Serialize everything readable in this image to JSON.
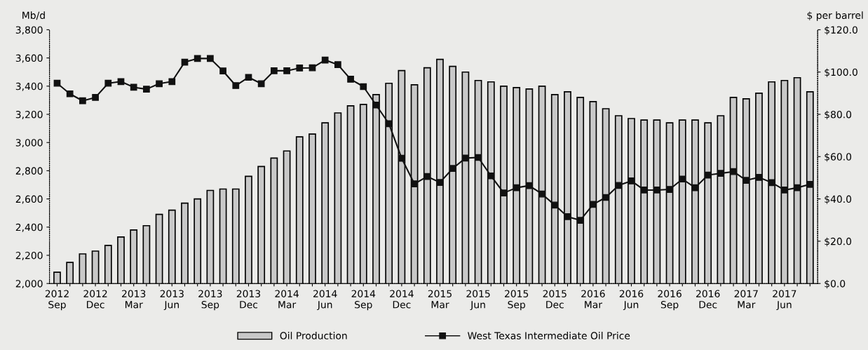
{
  "chart_data": {
    "type": "bar",
    "ylabel": "Mb/d",
    "y2label": "$ per barrel",
    "categories": [
      "2012\nSep",
      null,
      null,
      "2012\nDec",
      null,
      null,
      "2013\nMar",
      null,
      null,
      "2013\nJun",
      null,
      null,
      "2013\nSep",
      null,
      null,
      "2013\nDec",
      null,
      null,
      "2014\nMar",
      null,
      null,
      "2014\nJun",
      null,
      null,
      "2014\nSep",
      null,
      null,
      "2014\nDec",
      null,
      null,
      "2015\nMar",
      null,
      null,
      "2015\nJun",
      null,
      null,
      "2015\nSep",
      null,
      null,
      "2015\nDec",
      null,
      null,
      "2016\nMar",
      null,
      null,
      "2016\nJun",
      null,
      null,
      "2016\nSep",
      null,
      null,
      "2016\nDec",
      null,
      null,
      "2017\nMar",
      null,
      null,
      "2017\nJun",
      null,
      null
    ],
    "series": [
      {
        "name": "Oil Production",
        "color": "#c8c8c8",
        "values": [
          2080,
          2150,
          2210,
          2230,
          2270,
          2330,
          2380,
          2410,
          2490,
          2520,
          2570,
          2600,
          2660,
          2670,
          2670,
          2760,
          2830,
          2890,
          2940,
          3040,
          3060,
          3140,
          3210,
          3260,
          3270,
          3340,
          3420,
          3510,
          3410,
          3530,
          3590,
          3540,
          3500,
          3440,
          3430,
          3400,
          3390,
          3380,
          3400,
          3340,
          3360,
          3320,
          3290,
          3240,
          3190,
          3170,
          3160,
          3160,
          3140,
          3160,
          3160,
          3140,
          3190,
          3320,
          3310,
          3350,
          3430,
          3440,
          3460,
          3360
        ]
      },
      {
        "name": "West Texas Intermediate Oil Price",
        "type": "line",
        "axis": "y2",
        "color": "#111111",
        "marker": "square",
        "line_style": "solid",
        "values": [
          94.7,
          89.7,
          86.4,
          88.0,
          94.7,
          95.5,
          92.8,
          91.9,
          94.5,
          95.5,
          104.7,
          106.4,
          106.4,
          100.5,
          93.6,
          97.5,
          94.5,
          100.6,
          100.6,
          101.9,
          102.0,
          105.7,
          103.5,
          96.6,
          93.1,
          84.4,
          75.6,
          59.2,
          47.1,
          50.6,
          47.8,
          54.4,
          59.3,
          59.6,
          50.9,
          42.8,
          45.3,
          46.3,
          42.3,
          37.1,
          31.6,
          29.9,
          37.4,
          40.7,
          46.4,
          48.5,
          44.2,
          44.2,
          44.5,
          49.4,
          45.3,
          51.3,
          52.1,
          52.9,
          48.8,
          50.2,
          47.7,
          44.2,
          45.3,
          46.9
        ]
      }
    ],
    "ylim": [
      2000,
      3800
    ],
    "yticks": [
      {
        "value": 2000,
        "label": "2,000"
      },
      {
        "value": 2200,
        "label": "2,200"
      },
      {
        "value": 2400,
        "label": "2,400"
      },
      {
        "value": 2600,
        "label": "2,600"
      },
      {
        "value": 2800,
        "label": "2,800"
      },
      {
        "value": 3000,
        "label": "3,000"
      },
      {
        "value": 3200,
        "label": "3,200"
      },
      {
        "value": 3400,
        "label": "3,400"
      },
      {
        "value": 3600,
        "label": "3,600"
      },
      {
        "value": 3800,
        "label": "3,800"
      }
    ],
    "y2lim": [
      0,
      120
    ],
    "y2ticks": [
      {
        "value": 0,
        "label": "$0.0"
      },
      {
        "value": 20,
        "label": "$20.0"
      },
      {
        "value": 40,
        "label": "$40.0"
      },
      {
        "value": 60,
        "label": "$60.0"
      },
      {
        "value": 80,
        "label": "$80.0"
      },
      {
        "value": 100,
        "label": "$100.0"
      },
      {
        "value": 120,
        "label": "$120.0"
      }
    ],
    "grid": false,
    "legend": "bottom"
  }
}
